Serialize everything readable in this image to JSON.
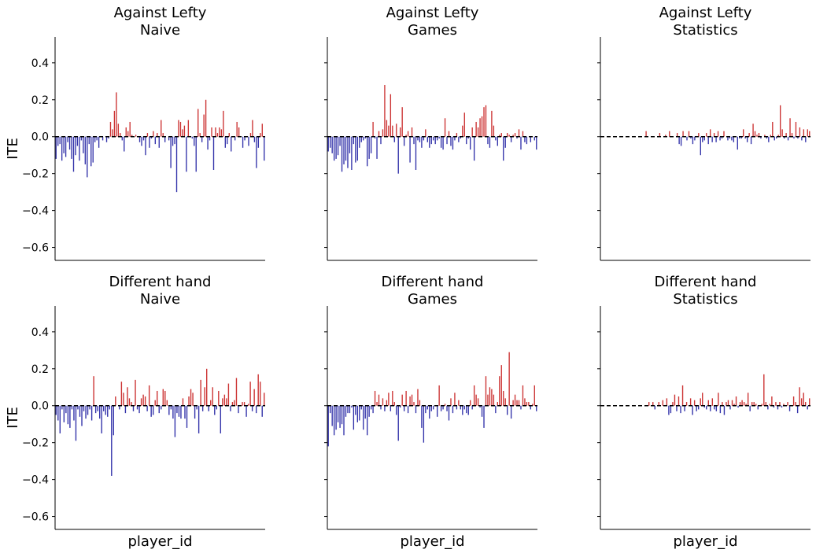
{
  "figure": {
    "ylabel": "ITE",
    "xlabel": "player_id",
    "colors": {
      "positive": "#cc3333",
      "negative": "#3333aa",
      "zero_line": "#000000",
      "axis": "#000000"
    }
  },
  "chart_data": [
    {
      "type": "bar",
      "title": "Against Lefty\nNaive",
      "ylim": [
        -0.67,
        0.54
      ],
      "yticks": [
        0.4,
        0.2,
        0.0,
        -0.2,
        -0.4,
        -0.6
      ],
      "ytick_labels": [
        "0.4",
        "0.2",
        "0.0",
        "−0.2",
        "−0.4",
        "−0.6"
      ],
      "grid": false,
      "reference_line": 0.0,
      "values": [
        -0.12,
        -0.05,
        -0.04,
        -0.13,
        -0.09,
        -0.11,
        -0.03,
        -0.07,
        -0.12,
        -0.19,
        -0.1,
        -0.05,
        -0.13,
        -0.02,
        -0.09,
        -0.15,
        -0.22,
        -0.04,
        -0.16,
        -0.14,
        -0.03,
        -0.02,
        -0.06,
        0.0,
        -0.02,
        0.0,
        -0.03,
        -0.01,
        0.08,
        0.04,
        0.14,
        0.24,
        0.07,
        0.02,
        -0.02,
        -0.08,
        0.05,
        0.03,
        0.08,
        0.01,
        0.0,
        0.01,
        0.0,
        -0.03,
        -0.05,
        -0.02,
        -0.1,
        0.02,
        -0.06,
        -0.01,
        0.03,
        -0.04,
        0.02,
        -0.06,
        0.09,
        0.02,
        -0.03,
        0.0,
        -0.02,
        -0.17,
        -0.05,
        -0.04,
        -0.3,
        0.09,
        0.08,
        0.04,
        0.06,
        -0.19,
        0.09,
        0.0,
        -0.01,
        -0.05,
        -0.19,
        0.15,
        0.02,
        -0.03,
        0.12,
        0.2,
        -0.07,
        -0.02,
        0.05,
        -0.18,
        0.05,
        0.02,
        0.05,
        0.04,
        0.14,
        -0.06,
        -0.04,
        0.02,
        -0.08,
        0.0,
        -0.02,
        0.08,
        0.05,
        0.0,
        -0.06,
        -0.02,
        0.0,
        -0.05,
        0.02,
        0.09,
        -0.03,
        -0.17,
        -0.06,
        0.02,
        0.07,
        -0.13
      ]
    },
    {
      "type": "bar",
      "title": "Against Lefty\nGames",
      "ylim": [
        -0.67,
        0.54
      ],
      "yticks": [
        0.4,
        0.2,
        0.0,
        -0.2,
        -0.4,
        -0.6
      ],
      "ytick_labels": [
        "",
        "",
        "",
        "",
        "",
        ""
      ],
      "grid": false,
      "reference_line": 0.0,
      "values": [
        -0.08,
        -0.06,
        -0.09,
        -0.13,
        -0.12,
        -0.1,
        -0.05,
        -0.19,
        -0.15,
        -0.13,
        -0.17,
        -0.09,
        -0.18,
        -0.04,
        -0.14,
        -0.13,
        -0.06,
        -0.03,
        -0.02,
        -0.01,
        -0.16,
        -0.12,
        -0.09,
        0.08,
        -0.01,
        -0.12,
        0.03,
        -0.04,
        0.04,
        0.28,
        0.09,
        0.06,
        0.23,
        0.06,
        -0.03,
        0.07,
        -0.2,
        0.05,
        0.16,
        -0.05,
        0.01,
        0.03,
        -0.14,
        0.05,
        -0.04,
        -0.18,
        -0.02,
        -0.03,
        -0.06,
        -0.02,
        0.04,
        -0.03,
        -0.06,
        -0.04,
        -0.02,
        -0.04,
        -0.02,
        -0.01,
        -0.06,
        -0.07,
        0.1,
        -0.04,
        0.03,
        -0.05,
        -0.07,
        -0.02,
        0.02,
        -0.03,
        -0.01,
        0.06,
        0.13,
        -0.04,
        -0.01,
        -0.07,
        0.05,
        -0.13,
        0.08,
        0.05,
        0.1,
        0.11,
        0.16,
        0.17,
        -0.04,
        -0.06,
        0.14,
        0.06,
        -0.02,
        -0.05,
        0.01,
        0.02,
        -0.13,
        -0.06,
        0.02,
        0.01,
        -0.03,
        0.01,
        0.02,
        -0.01,
        0.04,
        -0.07,
        0.03,
        -0.03,
        -0.04,
        0.0,
        -0.03,
        0.0,
        -0.02,
        -0.07
      ]
    },
    {
      "type": "bar",
      "title": "Against Lefty\nStatistics",
      "ylim": [
        -0.67,
        0.54
      ],
      "yticks": [
        0.4,
        0.2,
        0.0,
        -0.2,
        -0.4,
        -0.6
      ],
      "ytick_labels": [
        "",
        "",
        "",
        "",
        "",
        ""
      ],
      "grid": false,
      "reference_line": 0.0,
      "values": [
        0.0,
        0.0,
        0.0,
        0.0,
        0.0,
        0.0,
        0.0,
        0.0,
        0.0,
        0.0,
        0.0,
        0.0,
        0.0,
        0.0,
        0.0,
        0.0,
        0.0,
        0.0,
        0.0,
        0.0,
        0.0,
        0.0,
        0.0,
        0.03,
        0.0,
        0.0,
        0.0,
        0.0,
        0.0,
        0.0,
        0.02,
        0.0,
        0.0,
        0.01,
        0.0,
        0.03,
        0.0,
        0.0,
        0.0,
        0.02,
        -0.04,
        -0.05,
        0.03,
        0.0,
        -0.02,
        0.03,
        -0.01,
        -0.04,
        -0.02,
        0.0,
        0.02,
        -0.1,
        -0.03,
        -0.02,
        0.02,
        -0.04,
        0.04,
        -0.03,
        0.02,
        -0.03,
        0.03,
        -0.02,
        -0.01,
        0.03,
        0.0,
        -0.02,
        -0.01,
        -0.02,
        -0.03,
        0.0,
        -0.07,
        -0.01,
        -0.01,
        0.04,
        -0.01,
        -0.03,
        0.02,
        -0.04,
        0.07,
        0.03,
        0.01,
        0.02,
        -0.01,
        0.0,
        0.01,
        -0.01,
        -0.03,
        0.01,
        0.08,
        -0.02,
        -0.01,
        0.01,
        0.17,
        0.04,
        -0.01,
        0.02,
        -0.02,
        0.1,
        0.02,
        -0.01,
        0.08,
        -0.01,
        0.05,
        -0.02,
        0.04,
        -0.03,
        0.04,
        0.03
      ]
    },
    {
      "type": "bar",
      "title": "Different hand\nNaive",
      "ylim": [
        -0.67,
        0.54
      ],
      "yticks": [
        0.4,
        0.2,
        0.0,
        -0.2,
        -0.4,
        -0.6
      ],
      "ytick_labels": [
        "0.4",
        "0.2",
        "0.0",
        "−0.2",
        "−0.4",
        "−0.6"
      ],
      "grid": false,
      "reference_line": 0.0,
      "values": [
        -0.05,
        -0.08,
        -0.15,
        -0.02,
        -0.09,
        -0.04,
        -0.1,
        -0.12,
        -0.02,
        -0.08,
        -0.19,
        -0.02,
        -0.06,
        -0.11,
        -0.03,
        -0.07,
        -0.05,
        -0.02,
        -0.08,
        0.16,
        -0.04,
        -0.03,
        -0.07,
        -0.15,
        -0.03,
        -0.05,
        -0.06,
        -0.02,
        -0.38,
        -0.16,
        0.05,
        0.0,
        -0.02,
        0.13,
        0.07,
        -0.04,
        0.1,
        0.04,
        0.02,
        -0.03,
        0.14,
        -0.02,
        -0.04,
        0.04,
        0.06,
        0.05,
        -0.03,
        0.11,
        -0.06,
        -0.05,
        0.03,
        0.08,
        -0.04,
        -0.02,
        0.09,
        0.08,
        0.03,
        -0.05,
        -0.02,
        -0.07,
        -0.17,
        -0.04,
        -0.06,
        -0.07,
        0.04,
        -0.07,
        -0.12,
        0.05,
        0.09,
        0.07,
        -0.07,
        -0.02,
        -0.15,
        0.14,
        -0.03,
        0.1,
        0.2,
        -0.03,
        0.03,
        0.1,
        -0.05,
        -0.02,
        0.08,
        -0.15,
        0.04,
        0.06,
        0.04,
        0.12,
        -0.03,
        0.02,
        0.03,
        0.15,
        -0.04,
        0.0,
        0.02,
        0.02,
        -0.06,
        0.01,
        0.13,
        -0.03,
        0.09,
        -0.04,
        0.17,
        0.13,
        -0.06,
        0.07
      ]
    },
    {
      "type": "bar",
      "title": "Different hand\nGames",
      "ylim": [
        -0.67,
        0.54
      ],
      "yticks": [
        0.4,
        0.2,
        0.0,
        -0.2,
        -0.4,
        -0.6
      ],
      "ytick_labels": [
        "",
        "",
        "",
        "",
        "",
        ""
      ],
      "grid": false,
      "reference_line": 0.0,
      "values": [
        -0.22,
        -0.04,
        -0.11,
        -0.16,
        -0.13,
        -0.09,
        -0.12,
        -0.1,
        -0.16,
        -0.06,
        -0.04,
        -0.04,
        -0.01,
        -0.13,
        -0.05,
        -0.09,
        -0.08,
        -0.02,
        -0.13,
        -0.07,
        -0.16,
        -0.06,
        -0.02,
        -0.04,
        0.08,
        0.02,
        0.06,
        -0.02,
        0.04,
        -0.03,
        0.03,
        0.07,
        -0.03,
        0.08,
        0.02,
        -0.05,
        -0.19,
        -0.01,
        0.06,
        -0.03,
        0.08,
        -0.04,
        0.05,
        0.06,
        0.02,
        -0.04,
        0.09,
        0.03,
        -0.12,
        -0.2,
        -0.04,
        -0.02,
        -0.07,
        -0.03,
        -0.02,
        0.0,
        -0.06,
        0.11,
        -0.03,
        -0.02,
        0.01,
        -0.03,
        -0.08,
        0.04,
        -0.04,
        0.07,
        -0.02,
        0.03,
        -0.02,
        -0.05,
        -0.02,
        -0.04,
        -0.05,
        0.03,
        -0.02,
        0.11,
        0.06,
        0.04,
        -0.01,
        -0.06,
        -0.12,
        0.16,
        0.06,
        0.1,
        0.09,
        0.06,
        -0.04,
        0.02,
        0.16,
        0.22,
        0.08,
        0.04,
        -0.05,
        0.29,
        -0.07,
        0.03,
        0.06,
        0.03,
        0.03,
        -0.02,
        0.11,
        0.04,
        0.02,
        0.02,
        -0.02,
        0.01,
        0.11,
        -0.03
      ]
    },
    {
      "type": "bar",
      "title": "Different hand\nStatistics",
      "ylim": [
        -0.67,
        0.54
      ],
      "yticks": [
        0.4,
        0.2,
        0.0,
        -0.2,
        -0.4,
        -0.6
      ],
      "ytick_labels": [
        "",
        "",
        "",
        "",
        "",
        ""
      ],
      "grid": false,
      "reference_line": 0.0,
      "values": [
        0.0,
        0.0,
        0.0,
        0.0,
        0.0,
        0.0,
        0.0,
        0.0,
        0.0,
        0.0,
        0.0,
        0.0,
        0.0,
        0.0,
        0.0,
        0.0,
        0.0,
        0.0,
        0.0,
        0.0,
        0.0,
        0.0,
        0.0,
        0.0,
        0.02,
        0.0,
        0.02,
        -0.02,
        0.0,
        0.02,
        0.0,
        0.03,
        0.0,
        0.04,
        -0.05,
        -0.04,
        0.02,
        0.06,
        -0.03,
        0.05,
        -0.04,
        0.11,
        -0.03,
        0.02,
        0.0,
        0.04,
        -0.05,
        0.03,
        -0.03,
        -0.02,
        0.04,
        0.07,
        -0.01,
        -0.02,
        0.03,
        -0.03,
        0.04,
        -0.02,
        -0.03,
        0.07,
        -0.04,
        0.02,
        -0.05,
        0.02,
        0.03,
        -0.02,
        0.03,
        0.01,
        0.05,
        -0.01,
        0.02,
        0.03,
        0.02,
        0.01,
        0.07,
        -0.03,
        0.02,
        0.02,
        0.01,
        -0.02,
        0.0,
        0.01,
        0.17,
        0.02,
        -0.02,
        0.01,
        0.05,
        -0.01,
        0.02,
        -0.02,
        0.02,
        -0.01,
        0.01,
        0.0,
        0.02,
        -0.03,
        0.0,
        0.05,
        0.02,
        -0.04,
        0.1,
        0.04,
        0.07,
        0.02,
        -0.02,
        0.04
      ]
    }
  ]
}
